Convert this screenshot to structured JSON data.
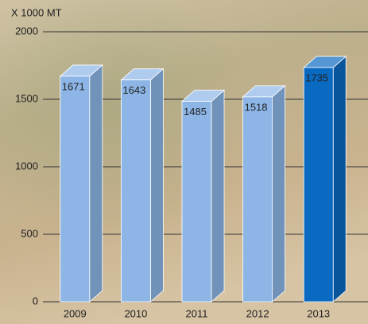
{
  "chart_data": {
    "type": "bar3d",
    "y_label": "X 1000 MT",
    "categories": [
      "2009",
      "2010",
      "2011",
      "2012",
      "2013"
    ],
    "values": [
      1671,
      1643,
      1485,
      1518,
      1735
    ],
    "colors": [
      "#8db6e7",
      "#8db6e7",
      "#8db6e7",
      "#8db6e7",
      "#0a6ac2"
    ],
    "ylim": [
      0,
      2000
    ],
    "yticks": [
      0,
      500,
      1000,
      1500,
      2000
    ],
    "grid": true
  }
}
